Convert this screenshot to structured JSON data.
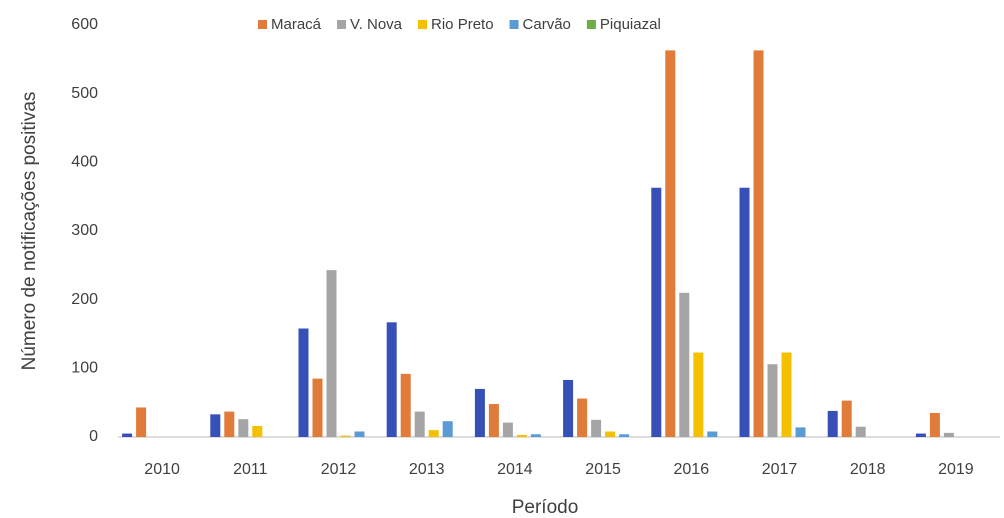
{
  "chart_data": {
    "type": "bar",
    "x_label": "Período",
    "y_label": "Número de notificações positivas",
    "categories": [
      "2010",
      "2011",
      "2012",
      "2013",
      "2014",
      "2015",
      "2016",
      "2017",
      "2018",
      "2019"
    ],
    "series": [
      {
        "color": "#3650b8",
        "values": [
          5,
          33,
          158,
          167,
          70,
          83,
          363,
          363,
          38,
          5
        ]
      },
      {
        "name": "Maracá",
        "color": "#e07b39",
        "values": [
          43,
          37,
          85,
          92,
          48,
          56,
          563,
          563,
          53,
          35
        ]
      },
      {
        "name": "V. Nova",
        "color": "#a5a5a5",
        "values": [
          0,
          26,
          243,
          37,
          21,
          25,
          210,
          106,
          15,
          6
        ]
      },
      {
        "name": "Rio Preto",
        "color": "#f5c000",
        "values": [
          0,
          16,
          2,
          10,
          3,
          8,
          123,
          123,
          0,
          0
        ]
      },
      {
        "name": "Carvão",
        "color": "#5b9bd5",
        "values": [
          0,
          0,
          8,
          23,
          4,
          4,
          8,
          14,
          0,
          0
        ]
      },
      {
        "name": "Piquiazal",
        "color": "#70ad47",
        "values": [
          0,
          0,
          0,
          0,
          0,
          0,
          0,
          0,
          0,
          0
        ]
      }
    ],
    "ylim": [
      0,
      600
    ],
    "yticks": [
      0,
      100,
      200,
      300,
      400,
      500,
      600
    ],
    "grid": false
  }
}
